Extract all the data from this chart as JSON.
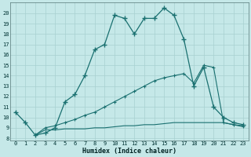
{
  "xlabel": "Humidex (Indice chaleur)",
  "bg_color": "#c5e8e8",
  "grid_color": "#a8d0d0",
  "line_color": "#1a7070",
  "xlim": [
    -0.5,
    23.5
  ],
  "ylim": [
    7.8,
    21.0
  ],
  "xticks": [
    0,
    1,
    2,
    3,
    4,
    5,
    6,
    7,
    8,
    9,
    10,
    11,
    12,
    13,
    14,
    15,
    16,
    17,
    18,
    19,
    20,
    21,
    22,
    23
  ],
  "yticks": [
    8,
    9,
    10,
    11,
    12,
    13,
    14,
    15,
    16,
    17,
    18,
    19,
    20
  ],
  "curve1_x": [
    0,
    1,
    2,
    3,
    4,
    5,
    6,
    7,
    8,
    9,
    10,
    11,
    12,
    13,
    14,
    15,
    16,
    17,
    18,
    19,
    20,
    21,
    22,
    23
  ],
  "curve1_y": [
    10.5,
    9.5,
    8.3,
    8.5,
    9.0,
    11.5,
    12.2,
    14.0,
    16.5,
    17.0,
    19.8,
    19.5,
    18.0,
    19.5,
    19.5,
    20.5,
    19.8,
    17.5,
    13.0,
    14.8,
    11.0,
    10.0,
    9.5,
    9.3
  ],
  "curve2_x": [
    2,
    3,
    4,
    5,
    6,
    7,
    8,
    9,
    10,
    11,
    12,
    13,
    14,
    15,
    16,
    17,
    18,
    19,
    20,
    21,
    22,
    23
  ],
  "curve2_y": [
    8.3,
    9.0,
    9.2,
    9.5,
    9.8,
    10.2,
    10.5,
    11.0,
    11.5,
    12.0,
    12.5,
    13.0,
    13.5,
    13.8,
    14.0,
    14.2,
    13.3,
    15.0,
    14.8,
    9.5,
    9.3,
    9.1
  ],
  "curve3_x": [
    2,
    3,
    4,
    5,
    6,
    7,
    8,
    9,
    10,
    11,
    12,
    13,
    14,
    15,
    16,
    17,
    18,
    19,
    20,
    21,
    22,
    23
  ],
  "curve3_y": [
    8.3,
    8.8,
    8.8,
    8.9,
    8.9,
    8.9,
    9.0,
    9.0,
    9.1,
    9.2,
    9.2,
    9.3,
    9.3,
    9.4,
    9.5,
    9.5,
    9.5,
    9.5,
    9.5,
    9.5,
    9.3,
    9.2
  ]
}
